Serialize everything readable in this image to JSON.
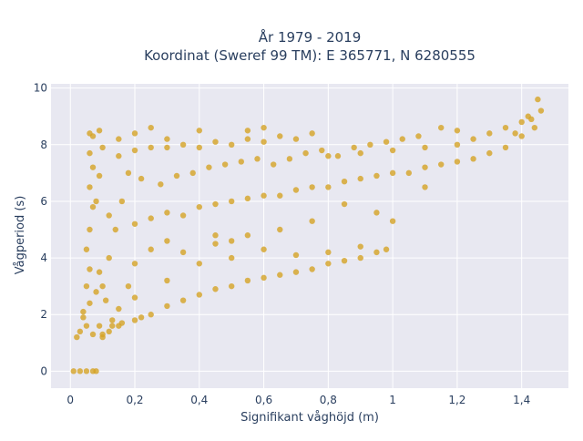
{
  "chart_data": {
    "type": "scatter",
    "title_line1": "År 1979 - 2019",
    "title_line2": "Koordinat (Sweref 99 TM): E 365771, N 6280555",
    "xlabel": "Signifikant våghöjd (m)",
    "ylabel": "Vågperiod (s)",
    "xlim": [
      -0.06,
      1.545
    ],
    "ylim": [
      -0.6,
      10.15
    ],
    "x_ticks": [
      {
        "value": 0,
        "label": "0"
      },
      {
        "value": 0.2,
        "label": "0,2"
      },
      {
        "value": 0.4,
        "label": "0,4"
      },
      {
        "value": 0.6,
        "label": "0,6"
      },
      {
        "value": 0.8,
        "label": "0,8"
      },
      {
        "value": 1.0,
        "label": "1"
      },
      {
        "value": 1.2,
        "label": "1,2"
      },
      {
        "value": 1.4,
        "label": "1,4"
      }
    ],
    "y_ticks": [
      {
        "value": 0,
        "label": "0"
      },
      {
        "value": 2,
        "label": "2"
      },
      {
        "value": 4,
        "label": "4"
      },
      {
        "value": 6,
        "label": "6"
      },
      {
        "value": 8,
        "label": "8"
      },
      {
        "value": 10,
        "label": "10"
      }
    ],
    "grid": true,
    "colors": {
      "marker": "#d4a226",
      "plot_bg": "#e8e8f1",
      "grid": "#ffffff",
      "text": "#2a3f5f"
    },
    "series": [
      {
        "values": [
          [
            0.01,
            0
          ],
          [
            0.03,
            0
          ],
          [
            0.05,
            0
          ],
          [
            0.07,
            0
          ],
          [
            0.08,
            0
          ],
          [
            0.02,
            1.2
          ],
          [
            0.03,
            1.4
          ],
          [
            0.05,
            1.6
          ],
          [
            0.04,
            1.9
          ],
          [
            0.06,
            2.4
          ],
          [
            0.05,
            3.0
          ],
          [
            0.06,
            3.6
          ],
          [
            0.05,
            4.3
          ],
          [
            0.06,
            5.0
          ],
          [
            0.07,
            5.8
          ],
          [
            0.06,
            6.5
          ],
          [
            0.07,
            7.2
          ],
          [
            0.06,
            7.7
          ],
          [
            0.07,
            8.3
          ],
          [
            0.09,
            8.5
          ],
          [
            0.04,
            2.1
          ],
          [
            0.08,
            2.8
          ],
          [
            0.09,
            3.5
          ],
          [
            0.08,
            6.0
          ],
          [
            0.09,
            6.9
          ],
          [
            0.1,
            1.2
          ],
          [
            0.12,
            1.4
          ],
          [
            0.15,
            1.6
          ],
          [
            0.2,
            1.8
          ],
          [
            0.25,
            2.0
          ],
          [
            0.3,
            2.3
          ],
          [
            0.35,
            2.5
          ],
          [
            0.4,
            2.7
          ],
          [
            0.45,
            2.9
          ],
          [
            0.5,
            3.0
          ],
          [
            0.55,
            3.2
          ],
          [
            0.6,
            3.3
          ],
          [
            0.65,
            3.4
          ],
          [
            0.7,
            3.5
          ],
          [
            0.75,
            3.6
          ],
          [
            0.8,
            3.8
          ],
          [
            0.85,
            3.9
          ],
          [
            0.9,
            4.0
          ],
          [
            0.95,
            4.2
          ],
          [
            0.98,
            4.3
          ],
          [
            0.2,
            2.6
          ],
          [
            0.3,
            3.2
          ],
          [
            0.4,
            3.8
          ],
          [
            0.5,
            4.0
          ],
          [
            0.6,
            4.3
          ],
          [
            0.7,
            4.1
          ],
          [
            0.8,
            4.2
          ],
          [
            0.9,
            4.4
          ],
          [
            0.35,
            4.2
          ],
          [
            0.45,
            4.5
          ],
          [
            0.1,
            3.0
          ],
          [
            0.12,
            4.0
          ],
          [
            0.14,
            5.0
          ],
          [
            0.16,
            6.0
          ],
          [
            0.18,
            7.0
          ],
          [
            0.15,
            7.6
          ],
          [
            0.2,
            7.8
          ],
          [
            0.25,
            7.9
          ],
          [
            0.3,
            7.9
          ],
          [
            0.35,
            8.0
          ],
          [
            0.4,
            7.9
          ],
          [
            0.45,
            8.1
          ],
          [
            0.5,
            8.0
          ],
          [
            0.55,
            8.2
          ],
          [
            0.6,
            8.1
          ],
          [
            0.65,
            8.3
          ],
          [
            0.7,
            8.2
          ],
          [
            0.75,
            8.4
          ],
          [
            0.2,
            8.4
          ],
          [
            0.25,
            8.6
          ],
          [
            0.12,
            5.5
          ],
          [
            0.2,
            5.2
          ],
          [
            0.25,
            5.4
          ],
          [
            0.3,
            5.6
          ],
          [
            0.35,
            5.5
          ],
          [
            0.4,
            5.8
          ],
          [
            0.45,
            5.9
          ],
          [
            0.5,
            6.0
          ],
          [
            0.55,
            6.1
          ],
          [
            0.6,
            6.2
          ],
          [
            0.65,
            6.2
          ],
          [
            0.7,
            6.4
          ],
          [
            0.75,
            6.5
          ],
          [
            0.8,
            6.5
          ],
          [
            0.85,
            6.7
          ],
          [
            0.9,
            6.8
          ],
          [
            0.95,
            6.9
          ],
          [
            1.0,
            7.0
          ],
          [
            1.05,
            7.0
          ],
          [
            1.1,
            7.2
          ],
          [
            1.15,
            7.3
          ],
          [
            1.2,
            7.4
          ],
          [
            1.25,
            7.5
          ],
          [
            1.3,
            7.7
          ],
          [
            1.35,
            7.9
          ],
          [
            0.8,
            7.6
          ],
          [
            0.9,
            7.7
          ],
          [
            1.0,
            7.8
          ],
          [
            1.1,
            7.9
          ],
          [
            1.2,
            8.0
          ],
          [
            1.25,
            8.2
          ],
          [
            1.3,
            8.4
          ],
          [
            1.35,
            8.6
          ],
          [
            1.4,
            8.8
          ],
          [
            1.42,
            9.0
          ],
          [
            1.4,
            8.3
          ],
          [
            1.43,
            8.9
          ],
          [
            1.45,
            9.6
          ],
          [
            1.44,
            8.6
          ],
          [
            1.38,
            8.4
          ],
          [
            1.46,
            9.2
          ],
          [
            1.2,
            8.5
          ],
          [
            1.15,
            8.6
          ],
          [
            1.1,
            6.5
          ],
          [
            1.0,
            5.3
          ],
          [
            0.95,
            5.6
          ],
          [
            0.85,
            5.9
          ],
          [
            0.75,
            5.3
          ],
          [
            0.65,
            5.0
          ],
          [
            0.55,
            4.8
          ],
          [
            0.5,
            4.6
          ],
          [
            0.45,
            4.8
          ],
          [
            0.3,
            4.6
          ],
          [
            0.25,
            4.3
          ],
          [
            0.2,
            3.8
          ],
          [
            0.15,
            2.2
          ],
          [
            0.18,
            3.0
          ],
          [
            0.13,
            1.8
          ],
          [
            0.11,
            2.5
          ],
          [
            0.09,
            1.6
          ],
          [
            0.07,
            1.3
          ],
          [
            0.1,
            1.3
          ],
          [
            0.13,
            1.6
          ],
          [
            0.16,
            1.7
          ],
          [
            0.22,
            1.9
          ],
          [
            0.22,
            6.8
          ],
          [
            0.28,
            6.6
          ],
          [
            0.33,
            6.9
          ],
          [
            0.38,
            7.0
          ],
          [
            0.43,
            7.2
          ],
          [
            0.48,
            7.3
          ],
          [
            0.53,
            7.4
          ],
          [
            0.58,
            7.5
          ],
          [
            0.63,
            7.3
          ],
          [
            0.68,
            7.5
          ],
          [
            0.73,
            7.7
          ],
          [
            0.78,
            7.8
          ],
          [
            0.83,
            7.6
          ],
          [
            0.88,
            7.9
          ],
          [
            0.93,
            8.0
          ],
          [
            0.98,
            8.1
          ],
          [
            1.03,
            8.2
          ],
          [
            1.08,
            8.3
          ],
          [
            0.6,
            8.6
          ],
          [
            0.55,
            8.5
          ],
          [
            0.4,
            8.5
          ],
          [
            0.3,
            8.2
          ],
          [
            0.15,
            8.2
          ],
          [
            0.1,
            7.9
          ],
          [
            0.06,
            8.4
          ]
        ]
      }
    ]
  }
}
